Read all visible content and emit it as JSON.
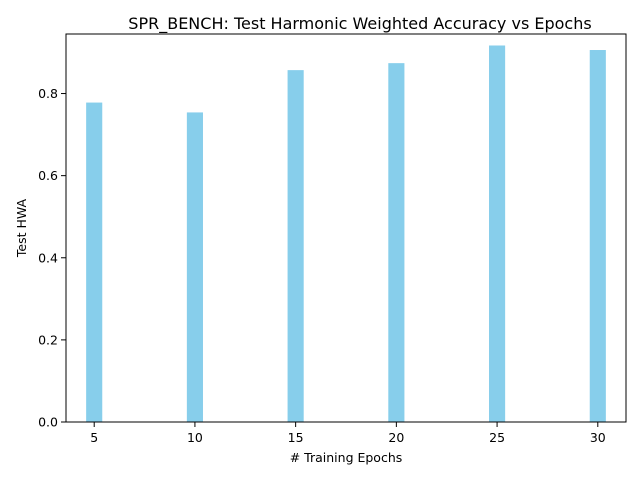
{
  "chart_data": {
    "type": "bar",
    "title": "SPR_BENCH: Test Harmonic Weighted Accuracy vs Epochs",
    "xlabel": "# Training Epochs",
    "ylabel": "Test HWA",
    "x": [
      5,
      10,
      15,
      20,
      25,
      30
    ],
    "values": [
      0.778,
      0.754,
      0.857,
      0.874,
      0.917,
      0.906
    ],
    "xlim": [
      3.6,
      31.4
    ],
    "ylim": [
      0,
      0.945
    ],
    "xticks": [
      5,
      10,
      15,
      20,
      25,
      30
    ],
    "yticks": [
      0.0,
      0.2,
      0.4,
      0.6,
      0.8
    ],
    "bar_width": 0.8,
    "bar_color": "#87ceeb",
    "grid": false,
    "legend": "none"
  }
}
